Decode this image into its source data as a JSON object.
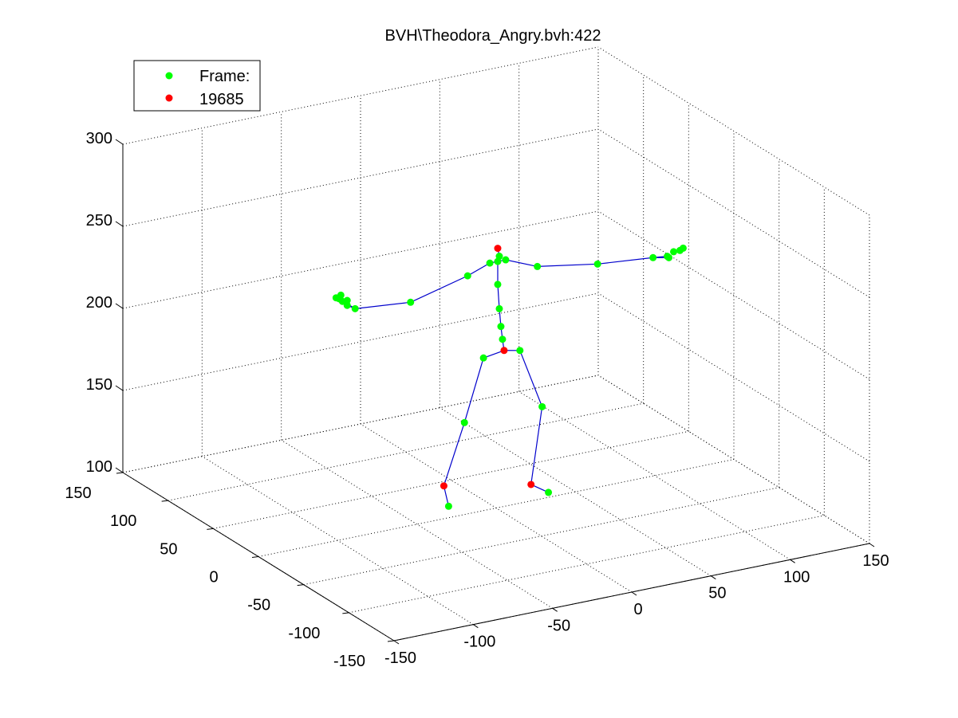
{
  "chart_data": {
    "type": "scatter",
    "title": "BVH\\Theodora_Angry.bvh:422",
    "legend": {
      "placement": "top-left",
      "entries": [
        {
          "label": "Frame:",
          "color": "#00ff00"
        },
        {
          "label": "19685",
          "color": "#ff0000"
        }
      ]
    },
    "grid": true,
    "x_axis": {
      "ticks": [
        "-150",
        "-100",
        "-50",
        "0",
        "50",
        "100",
        "150"
      ],
      "range": [
        -150,
        150
      ]
    },
    "y_axis": {
      "ticks": [
        "-150",
        "-100",
        "-50",
        "0",
        "50",
        "100",
        "150"
      ],
      "range": [
        -150,
        150
      ]
    },
    "z_axis": {
      "ticks": [
        "100",
        "150",
        "200",
        "250",
        "300"
      ],
      "range": [
        100,
        300
      ]
    },
    "joints": [
      {
        "id": "hips",
        "x": 5,
        "y": 0,
        "z": 195,
        "color": "red"
      },
      {
        "id": "spine1",
        "x": 4,
        "y": 0,
        "z": 202,
        "color": "green"
      },
      {
        "id": "spine2",
        "x": 3,
        "y": 0,
        "z": 210,
        "color": "green"
      },
      {
        "id": "spine3",
        "x": 2,
        "y": 0,
        "z": 221,
        "color": "green"
      },
      {
        "id": "chest",
        "x": 1,
        "y": 0,
        "z": 236,
        "color": "green"
      },
      {
        "id": "neck",
        "x": 1,
        "y": 0,
        "z": 250,
        "color": "green"
      },
      {
        "id": "neck2",
        "x": 2,
        "y": 0,
        "z": 253,
        "color": "green"
      },
      {
        "id": "head",
        "x": 1,
        "y": 0,
        "z": 258,
        "color": "red"
      },
      {
        "id": "l_collar",
        "x": -4,
        "y": 0,
        "z": 250,
        "color": "green"
      },
      {
        "id": "l_shoulder",
        "x": -18,
        "y": 0,
        "z": 245,
        "color": "green"
      },
      {
        "id": "l_elbow",
        "x": -54,
        "y": 0,
        "z": 236,
        "color": "green"
      },
      {
        "id": "l_wrist",
        "x": -89,
        "y": 0,
        "z": 239,
        "color": "green"
      },
      {
        "id": "l_hand1",
        "x": -94,
        "y": 0,
        "z": 242,
        "color": "green"
      },
      {
        "id": "l_hand2",
        "x": -97,
        "y": 0,
        "z": 245,
        "color": "green"
      },
      {
        "id": "l_hand3",
        "x": -99,
        "y": 0,
        "z": 247,
        "color": "green"
      },
      {
        "id": "l_hand4",
        "x": -101,
        "y": 0,
        "z": 248,
        "color": "green"
      },
      {
        "id": "l_hand5",
        "x": -98,
        "y": 0,
        "z": 249,
        "color": "green"
      },
      {
        "id": "l_hand6",
        "x": -94,
        "y": 0,
        "z": 245,
        "color": "green"
      },
      {
        "id": "r_collar",
        "x": 6,
        "y": 0,
        "z": 250,
        "color": "green"
      },
      {
        "id": "r_shoulder",
        "x": 26,
        "y": 0,
        "z": 242,
        "color": "green"
      },
      {
        "id": "r_elbow",
        "x": 64,
        "y": 0,
        "z": 236,
        "color": "green"
      },
      {
        "id": "r_wrist",
        "x": 99,
        "y": 0,
        "z": 233,
        "color": "green"
      },
      {
        "id": "r_hand1",
        "x": 108,
        "y": 0,
        "z": 232,
        "color": "green"
      },
      {
        "id": "r_hand2",
        "x": 112,
        "y": 0,
        "z": 234,
        "color": "green"
      },
      {
        "id": "r_hand3",
        "x": 116,
        "y": 0,
        "z": 234,
        "color": "green"
      },
      {
        "id": "r_hand4",
        "x": 118,
        "y": 0,
        "z": 235,
        "color": "green"
      },
      {
        "id": "r_hand5",
        "x": 109,
        "y": 0,
        "z": 231,
        "color": "green"
      },
      {
        "id": "l_hip",
        "x": -8,
        "y": 0,
        "z": 193,
        "color": "green"
      },
      {
        "id": "l_knee",
        "x": -20,
        "y": 0,
        "z": 156,
        "color": "green"
      },
      {
        "id": "l_ankle",
        "x": -33,
        "y": 0,
        "z": 120,
        "color": "red"
      },
      {
        "id": "l_toe",
        "x": -30,
        "y": 0,
        "z": 107,
        "color": "green"
      },
      {
        "id": "r_hip",
        "x": 15,
        "y": 0,
        "z": 193,
        "color": "green"
      },
      {
        "id": "r_knee",
        "x": 29,
        "y": 0,
        "z": 156,
        "color": "green"
      },
      {
        "id": "r_ankle",
        "x": 22,
        "y": 0,
        "z": 110,
        "color": "red"
      },
      {
        "id": "r_toe",
        "x": 33,
        "y": 0,
        "z": 103,
        "color": "green"
      }
    ],
    "bones": [
      [
        "hips",
        "spine1"
      ],
      [
        "spine1",
        "spine2"
      ],
      [
        "spine2",
        "spine3"
      ],
      [
        "spine3",
        "chest"
      ],
      [
        "chest",
        "neck"
      ],
      [
        "neck",
        "neck2"
      ],
      [
        "neck2",
        "head"
      ],
      [
        "neck",
        "l_collar"
      ],
      [
        "l_collar",
        "l_shoulder"
      ],
      [
        "l_shoulder",
        "l_elbow"
      ],
      [
        "l_elbow",
        "l_wrist"
      ],
      [
        "l_wrist",
        "l_hand1"
      ],
      [
        "l_wrist",
        "l_hand2"
      ],
      [
        "l_wrist",
        "l_hand3"
      ],
      [
        "l_wrist",
        "l_hand4"
      ],
      [
        "neck",
        "r_collar"
      ],
      [
        "r_collar",
        "r_shoulder"
      ],
      [
        "r_shoulder",
        "r_elbow"
      ],
      [
        "r_elbow",
        "r_wrist"
      ],
      [
        "r_wrist",
        "r_hand1"
      ],
      [
        "r_wrist",
        "r_hand5"
      ],
      [
        "hips",
        "l_hip"
      ],
      [
        "l_hip",
        "l_knee"
      ],
      [
        "l_knee",
        "l_ankle"
      ],
      [
        "l_ankle",
        "l_toe"
      ],
      [
        "hips",
        "r_hip"
      ],
      [
        "r_hip",
        "r_knee"
      ],
      [
        "r_knee",
        "r_ankle"
      ],
      [
        "r_ankle",
        "r_toe"
      ]
    ]
  }
}
